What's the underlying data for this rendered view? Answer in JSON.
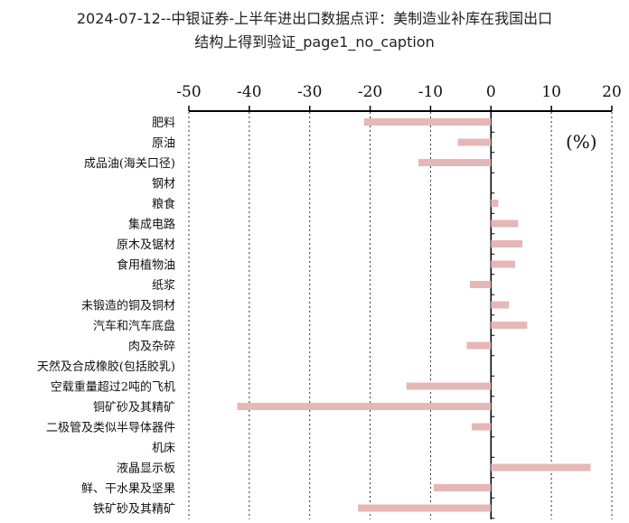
{
  "title": {
    "line1": "2024-07-12--中银证券-上半年进出口数据点评：美制造业补库在我国出口",
    "line2": "结构上得到验证_page1_no_caption"
  },
  "chart_data": {
    "type": "bar",
    "orientation": "horizontal",
    "unit_label": "(%)",
    "xlim": [
      -50,
      20
    ],
    "x_ticks": [
      "-50",
      "-40",
      "-30",
      "-20",
      "-10",
      "0",
      "10",
      "20"
    ],
    "grid": "vertical dotted",
    "bar_color": "#e6b7b7",
    "categories": [
      "肥料",
      "原油",
      "成品油(海关口径)",
      "钢材",
      "粮食",
      "集成电路",
      "原木及锯材",
      "食用植物油",
      "纸浆",
      "未锻造的铜及铜材",
      "汽车和汽车底盘",
      "肉及杂碎",
      "天然及合成橡胶(包括胶乳)",
      "空载重量超过2吨的飞机",
      "铜矿砂及其精矿",
      "二极管及类似半导体器件",
      "机床",
      "液晶显示板",
      "鲜、干水果及坚果",
      "铁矿砂及其精矿"
    ],
    "values": [
      -21,
      -5.5,
      -12,
      0,
      1.2,
      4.5,
      5.2,
      4,
      -3.5,
      3,
      6,
      -4,
      0,
      -14,
      -42,
      -3.2,
      0,
      16.5,
      -9.5,
      -22
    ]
  }
}
